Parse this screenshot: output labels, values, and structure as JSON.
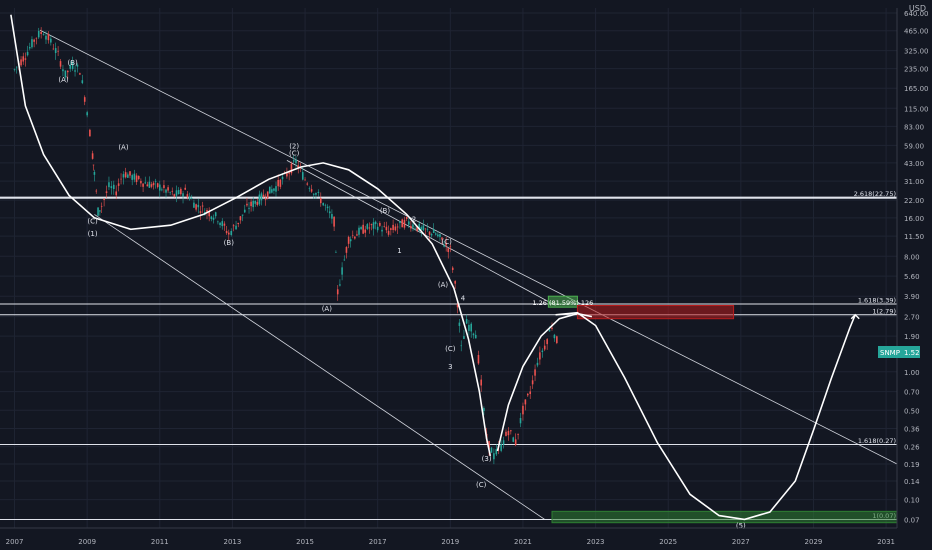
{
  "currency": "USD",
  "price_badge": {
    "ticker": "SNMP",
    "value": "1.52"
  },
  "chart_data": {
    "type": "candlestick",
    "log_scale": true,
    "x_range": [
      2006.6,
      2031.3
    ],
    "y_range": [
      0.06,
      700
    ],
    "x_ticks": [
      {
        "label": "2007",
        "year": 2007
      },
      {
        "label": "2009",
        "year": 2009
      },
      {
        "label": "2011",
        "year": 2011
      },
      {
        "label": "2013",
        "year": 2013
      },
      {
        "label": "2015",
        "year": 2015
      },
      {
        "label": "2017",
        "year": 2017
      },
      {
        "label": "2019",
        "year": 2019
      },
      {
        "label": "2021",
        "year": 2021
      },
      {
        "label": "2023",
        "year": 2023
      },
      {
        "label": "2025",
        "year": 2025
      },
      {
        "label": "2027",
        "year": 2027
      },
      {
        "label": "2029",
        "year": 2029
      },
      {
        "label": "2031",
        "year": 2031
      }
    ],
    "y_ticks": [
      {
        "label": "640.00",
        "value": 640
      },
      {
        "label": "465.00",
        "value": 465
      },
      {
        "label": "325.00",
        "value": 325
      },
      {
        "label": "235.00",
        "value": 235
      },
      {
        "label": "165.00",
        "value": 165
      },
      {
        "label": "115.00",
        "value": 115
      },
      {
        "label": "83.00",
        "value": 83
      },
      {
        "label": "59.00",
        "value": 59
      },
      {
        "label": "43.00",
        "value": 43
      },
      {
        "label": "31.00",
        "value": 31
      },
      {
        "label": "22.00",
        "value": 22
      },
      {
        "label": "16.00",
        "value": 16
      },
      {
        "label": "11.50",
        "value": 11.5
      },
      {
        "label": "8.00",
        "value": 8
      },
      {
        "label": "5.60",
        "value": 5.6
      },
      {
        "label": "3.90",
        "value": 3.9
      },
      {
        "label": "2.70",
        "value": 2.7
      },
      {
        "label": "1.90",
        "value": 1.9
      },
      {
        "label": "1.00",
        "value": 1.0
      },
      {
        "label": "0.70",
        "value": 0.7
      },
      {
        "label": "0.50",
        "value": 0.5
      },
      {
        "label": "0.36",
        "value": 0.36
      },
      {
        "label": "0.26",
        "value": 0.26
      },
      {
        "label": "0.19",
        "value": 0.19
      },
      {
        "label": "0.14",
        "value": 0.14
      },
      {
        "label": "0.10",
        "value": 0.1
      },
      {
        "label": "0.07",
        "value": 0.07
      }
    ],
    "price_path": [
      [
        2007.0,
        230
      ],
      [
        2007.3,
        300
      ],
      [
        2007.6,
        420
      ],
      [
        2007.8,
        460
      ],
      [
        2008.0,
        380
      ],
      [
        2008.2,
        300
      ],
      [
        2008.4,
        210
      ],
      [
        2008.6,
        250
      ],
      [
        2008.8,
        230
      ],
      [
        2009.0,
        110
      ],
      [
        2009.15,
        50
      ],
      [
        2009.2,
        35
      ],
      [
        2009.3,
        18
      ],
      [
        2009.4,
        20
      ],
      [
        2009.6,
        28
      ],
      [
        2009.8,
        26
      ],
      [
        2010.0,
        36
      ],
      [
        2010.3,
        33
      ],
      [
        2010.6,
        30
      ],
      [
        2011.0,
        28
      ],
      [
        2011.4,
        24
      ],
      [
        2011.7,
        26
      ],
      [
        2012.0,
        20
      ],
      [
        2012.3,
        18
      ],
      [
        2012.6,
        16
      ],
      [
        2012.9,
        12
      ],
      [
        2013.1,
        14
      ],
      [
        2013.4,
        19
      ],
      [
        2013.8,
        23
      ],
      [
        2014.2,
        28
      ],
      [
        2014.5,
        35
      ],
      [
        2014.75,
        44
      ],
      [
        2015.0,
        32
      ],
      [
        2015.3,
        25
      ],
      [
        2015.5,
        21
      ],
      [
        2015.8,
        15
      ],
      [
        2015.9,
        4.2
      ],
      [
        2016.2,
        11
      ],
      [
        2016.6,
        13
      ],
      [
        2017.0,
        14
      ],
      [
        2017.3,
        12.5
      ],
      [
        2017.8,
        15
      ],
      [
        2018.2,
        13
      ],
      [
        2018.6,
        12
      ],
      [
        2019.0,
        9
      ],
      [
        2019.2,
        3.5
      ],
      [
        2019.3,
        1.5
      ],
      [
        2019.45,
        2.4
      ],
      [
        2019.7,
        2.0
      ],
      [
        2019.85,
        0.8
      ],
      [
        2020.0,
        0.3
      ],
      [
        2020.2,
        0.22
      ],
      [
        2020.4,
        0.26
      ],
      [
        2020.6,
        0.35
      ],
      [
        2020.8,
        0.28
      ],
      [
        2021.0,
        0.5
      ],
      [
        2021.2,
        0.7
      ],
      [
        2021.4,
        1.2
      ],
      [
        2021.6,
        1.6
      ],
      [
        2021.8,
        2.3
      ],
      [
        2022.0,
        1.52
      ]
    ],
    "horizontal_levels": [
      {
        "value": 23,
        "label": "2.618(22.75)"
      },
      {
        "value": 3.39,
        "label": "1.618(3.39)"
      },
      {
        "value": 2.79,
        "label": "1(2.79)"
      },
      {
        "value": 0.27,
        "label": "1.618(0.27)"
      },
      {
        "value": 0.07,
        "label": "1(0.07)"
      }
    ],
    "projection_path": [
      [
        2021.9,
        2.79
      ],
      [
        2022.5,
        2.9
      ],
      [
        2023.0,
        2.3
      ],
      [
        2023.8,
        0.9
      ],
      [
        2024.7,
        0.28
      ],
      [
        2025.6,
        0.11
      ],
      [
        2026.4,
        0.075
      ],
      [
        2027.1,
        0.07
      ],
      [
        2027.8,
        0.08
      ],
      [
        2028.5,
        0.14
      ],
      [
        2029.0,
        0.35
      ],
      [
        2029.5,
        0.9
      ],
      [
        2030.0,
        2.2
      ],
      [
        2030.15,
        2.79
      ]
    ],
    "cup_curves": [
      {
        "name": "cup-1",
        "points": [
          [
            2006.9,
            620
          ],
          [
            2007.3,
            120
          ],
          [
            2007.8,
            50
          ],
          [
            2008.5,
            24
          ],
          [
            2009.2,
            16
          ],
          [
            2010.2,
            13
          ],
          [
            2011.3,
            14
          ],
          [
            2012.2,
            17
          ],
          [
            2013.1,
            23
          ],
          [
            2014.0,
            32
          ],
          [
            2014.9,
            40
          ],
          [
            2015.5,
            43
          ],
          [
            2016.2,
            38
          ],
          [
            2017.0,
            27
          ],
          [
            2017.8,
            17
          ],
          [
            2018.5,
            10
          ],
          [
            2019.1,
            4.5
          ],
          [
            2019.5,
            1.8
          ],
          [
            2019.8,
            0.7
          ],
          [
            2020.0,
            0.3
          ],
          [
            2020.1,
            0.22
          ]
        ]
      },
      {
        "name": "cup-2",
        "points": [
          [
            2020.3,
            0.24
          ],
          [
            2020.6,
            0.55
          ],
          [
            2021.0,
            1.1
          ],
          [
            2021.5,
            1.9
          ],
          [
            2022.0,
            2.6
          ],
          [
            2022.5,
            2.85
          ],
          [
            2022.9,
            2.7
          ]
        ]
      }
    ],
    "trend_lines": [
      {
        "from": [
          2007.7,
          470
        ],
        "to": [
          2031.3,
          0.19
        ]
      },
      {
        "from": [
          2009.2,
          17
        ],
        "to": [
          2021.6,
          0.07
        ]
      },
      {
        "from": [
          2014.5,
          45
        ],
        "to": [
          2021.9,
          3.3
        ]
      }
    ],
    "wave_labels": [
      {
        "text": "(B)",
        "x": 2008.6,
        "y": 250
      },
      {
        "text": "(A)",
        "x": 2008.35,
        "y": 185
      },
      {
        "text": "(C)",
        "x": 2009.15,
        "y": 14.5
      },
      {
        "text": "(1)",
        "x": 2009.15,
        "y": 11.5
      },
      {
        "text": "(A)",
        "x": 2010.0,
        "y": 55
      },
      {
        "text": "(B)",
        "x": 2012.9,
        "y": 9.8
      },
      {
        "text": "(2)",
        "x": 2014.7,
        "y": 56
      },
      {
        "text": "(C)",
        "x": 2014.7,
        "y": 49
      },
      {
        "text": "(A)",
        "x": 2015.6,
        "y": 3.0
      },
      {
        "text": "(B)",
        "x": 2017.2,
        "y": 17.5
      },
      {
        "text": "2",
        "x": 2018.0,
        "y": 15
      },
      {
        "text": "1",
        "x": 2017.6,
        "y": 8.5
      },
      {
        "text": "(C)",
        "x": 2018.9,
        "y": 10
      },
      {
        "text": "(A)",
        "x": 2018.8,
        "y": 4.6
      },
      {
        "text": "4",
        "x": 2019.35,
        "y": 3.6
      },
      {
        "text": "(C)",
        "x": 2019.0,
        "y": 1.45
      },
      {
        "text": "3",
        "x": 2019.0,
        "y": 1.05
      },
      {
        "text": "(3)",
        "x": 2020.0,
        "y": 0.2
      },
      {
        "text": "(C)",
        "x": 2019.85,
        "y": 0.125
      },
      {
        "text": "(5)",
        "x": 2027.0,
        "y": 0.06
      }
    ],
    "target_boxes": [
      {
        "x0": 2021.7,
        "x1": 2022.5,
        "y0": 3.2,
        "y1": 3.9,
        "color": "#4caf50",
        "label": "1.26 (81.59%) 126"
      },
      {
        "x0": 2022.5,
        "x1": 2026.8,
        "y0": 2.6,
        "y1": 3.3,
        "color": "#b71c1c"
      },
      {
        "x0": 2021.8,
        "x1": 2031.3,
        "y0": 0.066,
        "y1": 0.081,
        "color": "#2e7d32"
      }
    ]
  }
}
